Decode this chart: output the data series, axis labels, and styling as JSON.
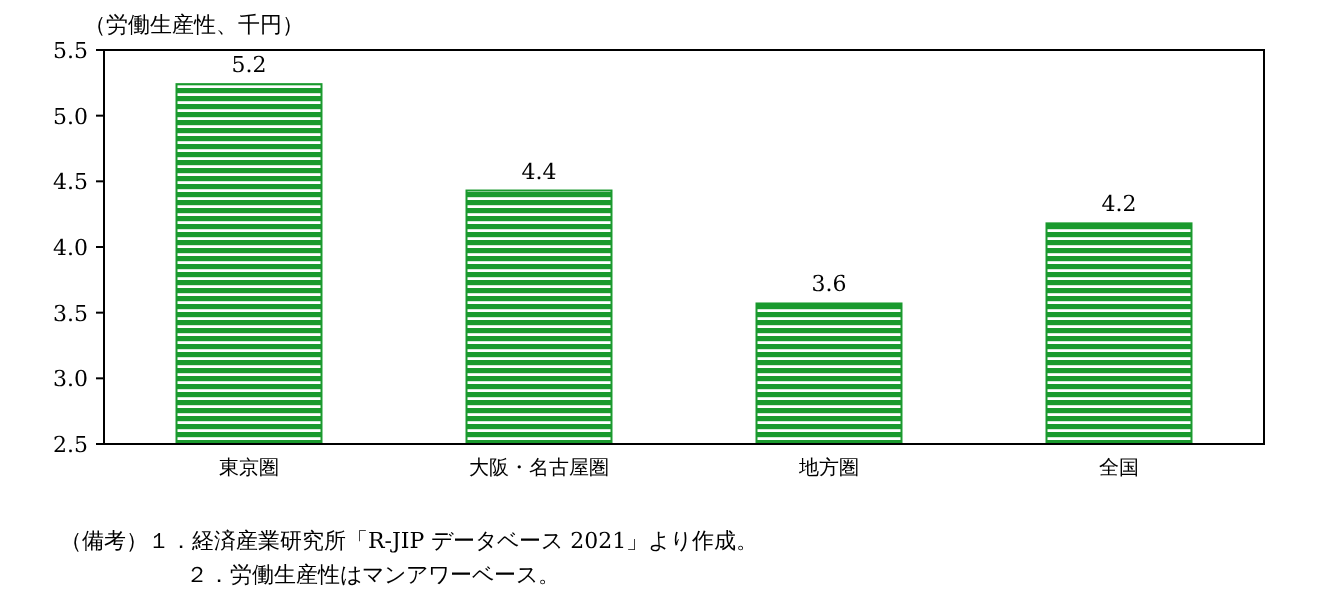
{
  "chart_data": {
    "type": "bar",
    "ylabel": "（労働生産性、千円）",
    "categories": [
      "東京圏",
      "大阪・名古屋圏",
      "地方圏",
      "全国"
    ],
    "values": [
      5.24,
      4.43,
      3.57,
      4.18
    ],
    "value_labels": [
      "5.2",
      "4.4",
      "3.6",
      "4.2"
    ],
    "color": "#1a9a2e",
    "ylim": [
      2.5,
      5.5
    ],
    "yticks": [
      2.5,
      {
        "value": 3,
        "label": "3.0"
      },
      3.5,
      {
        "value": 4,
        "label": "4.0"
      },
      4.5,
      {
        "value": 5,
        "label": "5.0"
      },
      5.5
    ],
    "annotations": [
      "（備考）１．経済産業研究所「R-JIP データベース 2021」より作成。",
      "２．労働生産性はマンアワーベース。"
    ]
  }
}
